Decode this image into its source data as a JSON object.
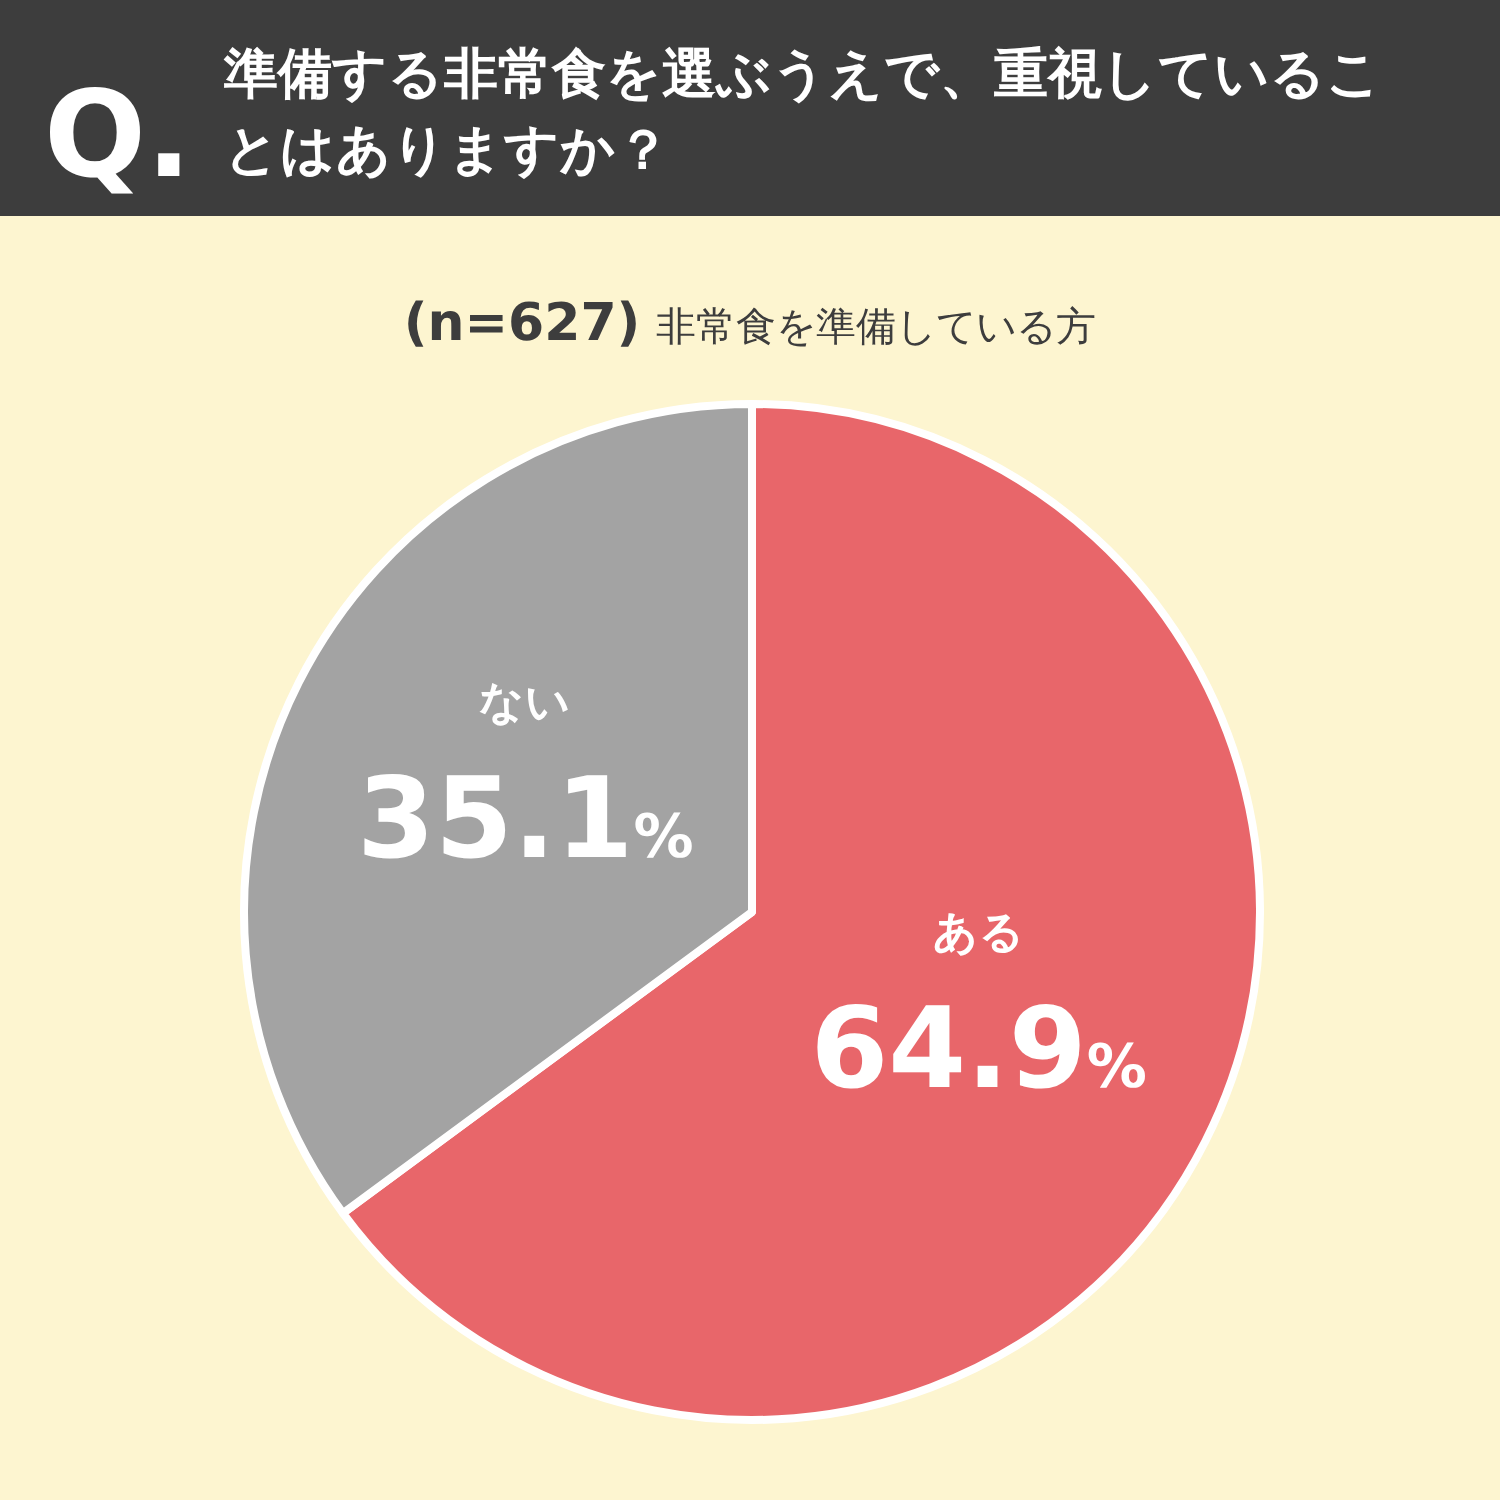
{
  "chart_data": {
    "type": "pie",
    "title": "Q. 準備する非常食を選ぶうえで、重視していることはありますか？",
    "subtitle": "(n=627) 非常食を準備している方",
    "categories": [
      "ある",
      "ない"
    ],
    "values": [
      64.9,
      35.1
    ],
    "colors": [
      "#e8666a",
      "#a3a3a3"
    ],
    "value_labels": [
      "64.9%",
      "35.1%"
    ]
  }
}
